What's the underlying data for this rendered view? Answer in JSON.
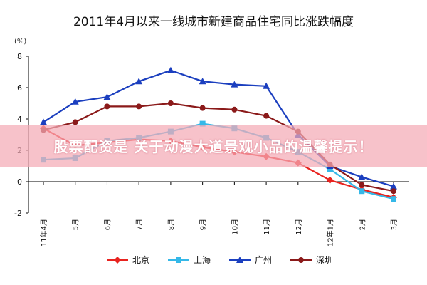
{
  "chart_data": {
    "type": "line",
    "title": "2011年4月以来一线城市新建商品住宅同比涨跌幅度",
    "ylabel": "(%)",
    "ylim": [
      -2,
      8
    ],
    "yticks": [
      -2,
      0,
      2,
      4,
      6,
      8
    ],
    "categories": [
      "11年4月",
      "5月",
      "6月",
      "7月",
      "8月",
      "9月",
      "10月",
      "11月",
      "12月",
      "12年1月",
      "2月",
      "3月"
    ],
    "grid": false,
    "legend_position": "bottom",
    "series": [
      {
        "name": "北京",
        "color": "#e8231f",
        "marker": "diamond",
        "values": [
          3.4,
          2.3,
          2.5,
          2.7,
          2.6,
          2.2,
          1.9,
          1.6,
          1.2,
          0.1,
          -0.5,
          -1.0
        ]
      },
      {
        "name": "上海",
        "color": "#35b8e8",
        "marker": "square",
        "values": [
          1.4,
          1.5,
          2.6,
          2.8,
          3.2,
          3.7,
          3.4,
          2.8,
          1.9,
          0.8,
          -0.6,
          -1.1
        ]
      },
      {
        "name": "广州",
        "color": "#1b3fbf",
        "marker": "triangle",
        "values": [
          3.8,
          5.1,
          5.4,
          6.4,
          7.1,
          6.4,
          6.2,
          6.1,
          3.0,
          1.0,
          0.3,
          -0.3
        ]
      },
      {
        "name": "深圳",
        "color": "#8b1a1a",
        "marker": "circle",
        "values": [
          3.3,
          3.8,
          4.8,
          4.8,
          5.0,
          4.7,
          4.6,
          4.2,
          3.2,
          1.1,
          -0.2,
          -0.6
        ]
      }
    ]
  },
  "overlay": {
    "text": "股票配资是 关于动漫大道景观小品的温馨提示！"
  }
}
